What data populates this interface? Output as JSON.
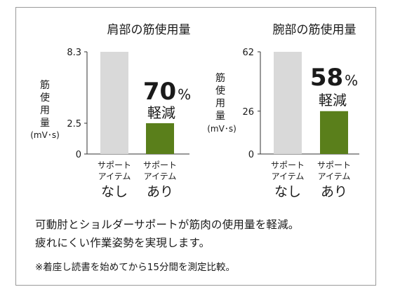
{
  "chart_data": [
    {
      "type": "bar",
      "title": "肩部の筋使用量",
      "ylabel_chars": [
        "筋",
        "使",
        "用",
        "量"
      ],
      "yunit": "(mV･s)",
      "yticks": [
        {
          "value": 0,
          "label": "0"
        },
        {
          "value": 2.5,
          "label": "2.5"
        },
        {
          "value": 8.3,
          "label": "8.3"
        }
      ],
      "ylim": [
        0,
        8.3
      ],
      "categories": [
        {
          "line1": "サポート",
          "line2": "アイテム",
          "line3": "なし"
        },
        {
          "line1": "サポート",
          "line2": "アイテム",
          "line3": "あり"
        }
      ],
      "values": [
        8.3,
        2.5
      ],
      "colors": [
        "#d9d9d9",
        "#5a7f1b"
      ],
      "reduction": {
        "number": "70",
        "percent": "%",
        "label": "軽減"
      }
    },
    {
      "type": "bar",
      "title": "腕部の筋使用量",
      "ylabel_chars": [
        "筋",
        "使",
        "用",
        "量"
      ],
      "yunit": "(mV･s)",
      "yticks": [
        {
          "value": 0,
          "label": "0"
        },
        {
          "value": 26,
          "label": "26"
        },
        {
          "value": 62,
          "label": "62"
        }
      ],
      "ylim": [
        0,
        62
      ],
      "categories": [
        {
          "line1": "サポート",
          "line2": "アイテム",
          "line3": "なし"
        },
        {
          "line1": "サポート",
          "line2": "アイテム",
          "line3": "あり"
        }
      ],
      "values": [
        62,
        26
      ],
      "colors": [
        "#d9d9d9",
        "#5a7f1b"
      ],
      "reduction": {
        "number": "58",
        "percent": "%",
        "label": "軽減"
      }
    }
  ],
  "footer": {
    "line1": "可動肘とショルダーサポートが筋肉の使用量を軽減。",
    "line2": "疲れにくい作業姿勢を実現します。",
    "note": "※着座し読書を始めてから15分間を測定比較。"
  }
}
